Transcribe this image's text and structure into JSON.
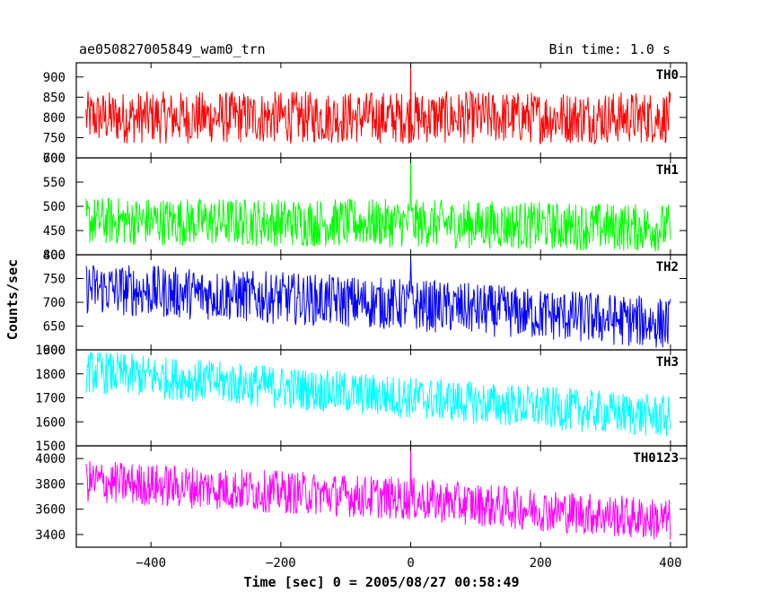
{
  "header": {
    "left_title": "ae050827005849_wam0_trn",
    "right_title": "Bin time: 1.0 s"
  },
  "chart_data": {
    "type": "line",
    "title": "ae050827005849_wam0_trn",
    "subtitle": "Bin time: 1.0 s",
    "xlabel": "Time [sec] 0 = 2005/08/27 00:58:49",
    "ylabel": "Counts/sec",
    "xlim": [
      -515,
      425
    ],
    "x_ticks": [
      -400,
      -200,
      0,
      200,
      400
    ],
    "x_range_data": [
      -500,
      400
    ],
    "bin_time_s": 1.0,
    "grid": false,
    "panels": [
      {
        "name": "TH0",
        "color": "#ff0000",
        "ylim": [
          700,
          935
        ],
        "y_ticks": [
          700,
          750,
          800,
          850,
          900
        ],
        "series": [
          {
            "name": "TH0",
            "trend": [
              {
                "x": -500,
                "y": 800
              },
              {
                "x": 0,
                "y": 800
              },
              {
                "x": 400,
                "y": 800
              }
            ],
            "noise_half_range": 65,
            "spike": {
              "x": 0,
              "y": 935
            }
          }
        ]
      },
      {
        "name": "TH1",
        "color": "#00ff00",
        "ylim": [
          400,
          600
        ],
        "y_ticks": [
          400,
          450,
          500,
          550,
          600
        ],
        "series": [
          {
            "name": "TH1",
            "trend": [
              {
                "x": -500,
                "y": 470
              },
              {
                "x": 0,
                "y": 465
              },
              {
                "x": 400,
                "y": 455
              }
            ],
            "noise_half_range": 50,
            "spike": {
              "x": 0,
              "y": 600
            }
          }
        ]
      },
      {
        "name": "TH2",
        "color": "#0000ff",
        "ylim": [
          600,
          800
        ],
        "y_ticks": [
          600,
          650,
          700,
          750,
          800
        ],
        "series": [
          {
            "name": "TH2",
            "trend": [
              {
                "x": -500,
                "y": 730
              },
              {
                "x": 0,
                "y": 695
              },
              {
                "x": 400,
                "y": 655
              }
            ],
            "noise_half_range": 55,
            "spike": {
              "x": 0,
              "y": 795
            }
          }
        ]
      },
      {
        "name": "TH3",
        "color": "#00ffff",
        "ylim": [
          1500,
          1900
        ],
        "y_ticks": [
          1500,
          1600,
          1700,
          1800,
          1900
        ],
        "series": [
          {
            "name": "TH3",
            "trend": [
              {
                "x": -500,
                "y": 1810
              },
              {
                "x": 0,
                "y": 1700
              },
              {
                "x": 400,
                "y": 1620
              }
            ],
            "noise_half_range": 90,
            "spike": null
          }
        ]
      },
      {
        "name": "TH0123",
        "color": "#ff00ff",
        "ylim": [
          3300,
          4100
        ],
        "y_ticks": [
          3400,
          3600,
          3800,
          4000
        ],
        "series": [
          {
            "name": "TH0123",
            "trend": [
              {
                "x": -500,
                "y": 3820
              },
              {
                "x": 0,
                "y": 3680
              },
              {
                "x": 400,
                "y": 3510
              }
            ],
            "noise_half_range": 170,
            "spike": {
              "x": 0,
              "y": 4100
            }
          }
        ]
      }
    ]
  }
}
